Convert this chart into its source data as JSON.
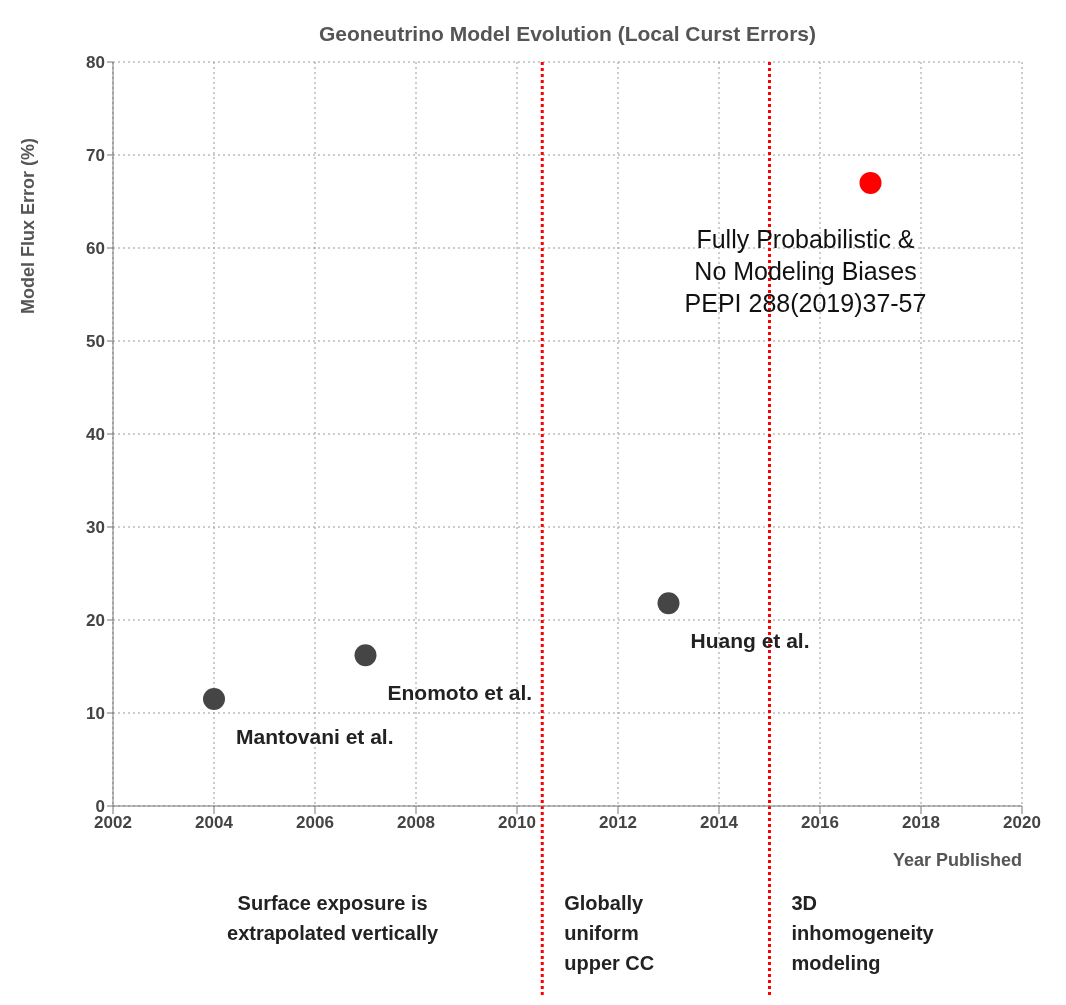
{
  "chart_data": {
    "type": "scatter",
    "title": "Geoneutrino Model Evolution (Local Curst Errors)",
    "xlabel": "Year Published",
    "ylabel": "Model Flux Error (%)",
    "x": [
      2004,
      2007,
      2013,
      2017
    ],
    "values": [
      11.5,
      16.2,
      21.8,
      67
    ],
    "colors": [
      "#454545",
      "#454545",
      "#454545",
      "#ff0000"
    ],
    "marker": "circle",
    "xlim": [
      2002,
      2020
    ],
    "xticks": [
      2002,
      2004,
      2006,
      2008,
      2010,
      2012,
      2014,
      2016,
      2018,
      2020
    ],
    "ylim": [
      0,
      80
    ],
    "yticks": [
      0,
      10,
      20,
      30,
      40,
      50,
      60,
      70,
      80
    ],
    "grid": true,
    "ref_lines": [
      {
        "axis": "x",
        "value": 2010.5,
        "color": "#ff0000",
        "line_style": "dotted"
      },
      {
        "axis": "x",
        "value": 2015,
        "color": "#ff0000",
        "line_style": "dotted"
      }
    ],
    "annotations": [
      {
        "text": "Mantovani et al.",
        "x": 2004,
        "y": 11.5
      },
      {
        "text": "Enomoto et al.",
        "x": 2007,
        "y": 16.2
      },
      {
        "text": "Huang et al.",
        "x": 2013,
        "y": 21.8
      },
      {
        "text": "Fully Probabilistic &\nNo Modeling Biases\nPEPI 288(2019)37-57",
        "x": 2017,
        "y": 67
      },
      "Surface exposure is\nextrapolated vertically",
      "Globally\nuniform\nupper CC",
      "3D\ninhomogeneity\nmodeling"
    ]
  }
}
